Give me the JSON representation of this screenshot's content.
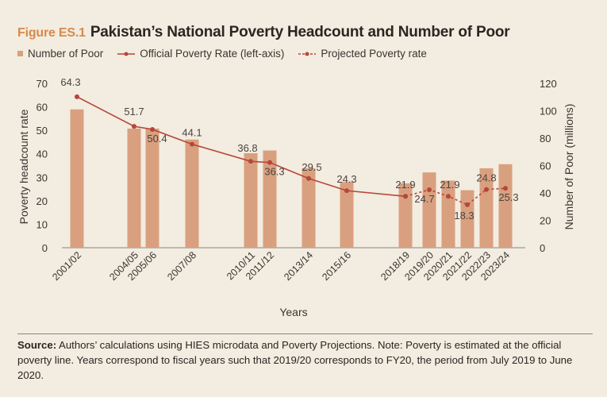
{
  "figure": {
    "label": "Figure ES.1",
    "title": "Pakistan’s National Poverty Headcount and Number of Poor"
  },
  "source": {
    "label": "Source:",
    "text": "Authors’ calculations using HIES microdata and Poverty Projections. Note: Poverty is estimated at the official poverty line. Years correspond to fiscal years such that 2019/20 corresponds to FY20, the period from July 2019 to June 2020."
  },
  "chart_data": {
    "type": "bar+line",
    "title": "Pakistan’s National Poverty Headcount and Number of Poor",
    "xlabel": "Years",
    "ylabel": "Poverty headcount rate",
    "y2label": "Number of Poor (millions)",
    "ylim": [
      0,
      70
    ],
    "y2lim": [
      0,
      120
    ],
    "yticks": [
      "0",
      "10",
      "20",
      "30",
      "40",
      "50",
      "60",
      "70"
    ],
    "y2ticks": [
      "0",
      "20",
      "40",
      "60",
      "80",
      "100",
      "120"
    ],
    "legend_position": "top-left",
    "grid": false,
    "categories": [
      "2001/02",
      "2004/05",
      "2005/06",
      "2007/08",
      "2010/11",
      "2011/12",
      "2013/14",
      "2015/16",
      "2018/19",
      "2019/20",
      "2020/21",
      "2021/22",
      "2022/23",
      "2023/24"
    ],
    "series": [
      {
        "name": "Number of Poor",
        "type": "bar",
        "axis": "right",
        "color": "#d9a07f",
        "values": [
          101,
          87,
          87,
          79,
          69,
          71,
          58,
          48,
          47,
          55,
          49,
          42,
          58,
          61
        ]
      },
      {
        "name": "Official Poverty Rate (left-axis)",
        "type": "line",
        "axis": "left",
        "color": "#b5473a",
        "style": "solid",
        "values": [
          64.3,
          51.7,
          50.4,
          44.1,
          36.8,
          36.3,
          29.5,
          24.3,
          21.9,
          null,
          null,
          null,
          null,
          null
        ],
        "labels": [
          "64.3",
          "51.7",
          "50.4",
          "44.1",
          "36.8",
          "36.3",
          "29.5",
          "24.3",
          "21.9",
          "",
          "",
          "",
          "",
          ""
        ]
      },
      {
        "name": "Projected Poverty rate",
        "type": "line",
        "axis": "left",
        "color": "#b5473a",
        "style": "dashed",
        "values": [
          null,
          null,
          null,
          null,
          null,
          null,
          null,
          null,
          21.9,
          24.7,
          21.9,
          18.3,
          24.8,
          25.3
        ],
        "labels": [
          "",
          "",
          "",
          "",
          "",
          "",
          "",
          "",
          "",
          "24.7",
          "21.9",
          "18.3",
          "24.8",
          "25.3"
        ]
      }
    ]
  }
}
